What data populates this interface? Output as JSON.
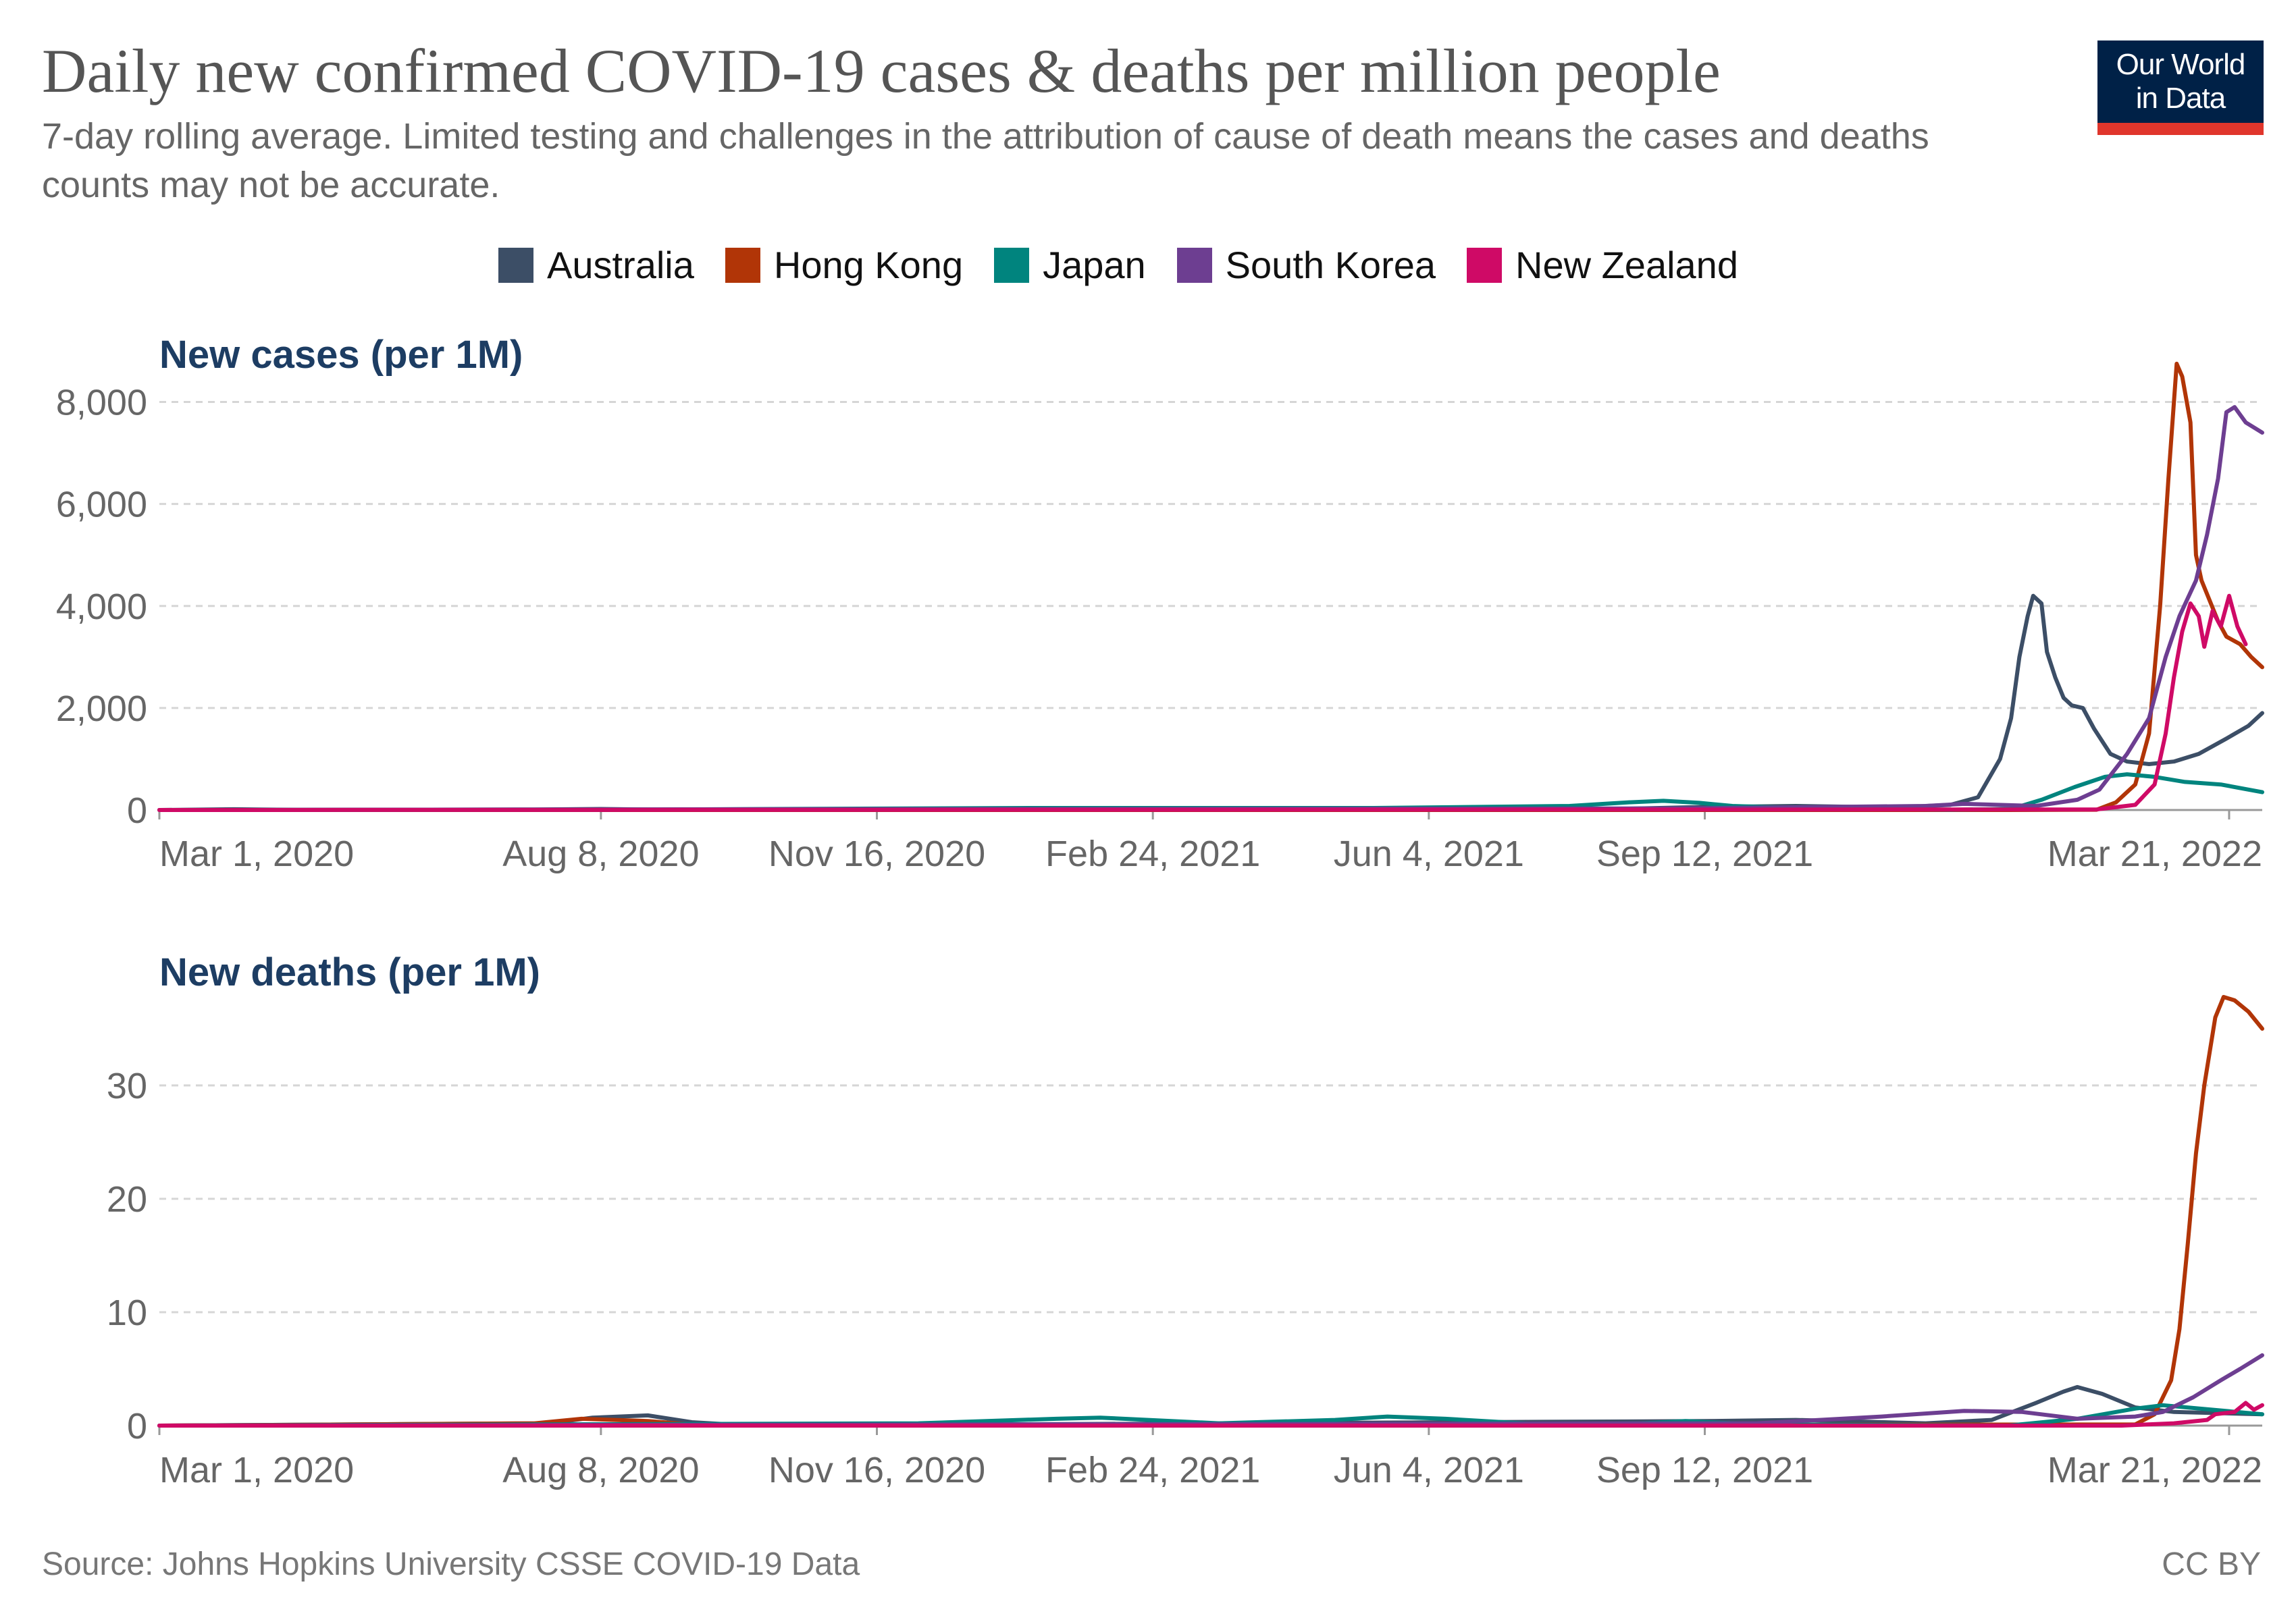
{
  "header": {
    "title": "Daily new confirmed COVID-19 cases & deaths per million people",
    "subtitle": "7-day rolling average. Limited testing and challenges in the attribution of cause of death means the cases and deaths counts may not be accurate.",
    "logo_line1": "Our World",
    "logo_line2": "in Data"
  },
  "footer": {
    "source": "Source: Johns Hopkins University CSSE COVID-19 Data",
    "license": "CC BY"
  },
  "colors": {
    "Australia": "#3c4e66",
    "Hong Kong": "#b13507",
    "Japan": "#00847e",
    "South Korea": "#6d3e91",
    "New Zealand": "#cf0a66"
  },
  "chart_data": [
    {
      "type": "line",
      "title": "New cases (per 1M)",
      "date_range": [
        "2020-03-01",
        "2022-04-02"
      ],
      "ylim": [
        0,
        9000
      ],
      "yticks": [
        0,
        2000,
        4000,
        6000,
        8000
      ],
      "ytick_labels": [
        "0",
        "2,000",
        "4,000",
        "6,000",
        "8,000"
      ],
      "xtick_labels": [
        "Mar 1, 2020",
        "Aug 8, 2020",
        "Nov 16, 2020",
        "Feb 24, 2021",
        "Jun 4, 2021",
        "Sep 12, 2021",
        "Mar 21, 2022"
      ],
      "xtick_dates": [
        "2020-03-01",
        "2020-08-08",
        "2020-11-16",
        "2021-02-24",
        "2021-06-04",
        "2021-09-12",
        "2022-03-21"
      ],
      "legend": [
        "Australia",
        "Hong Kong",
        "Japan",
        "South Korea",
        "New Zealand"
      ],
      "legend_position": "top",
      "grid": true,
      "series": [
        {
          "name": "Australia",
          "points": [
            [
              "2020-03-01",
              0
            ],
            [
              "2020-03-28",
              15
            ],
            [
              "2020-04-20",
              2
            ],
            [
              "2020-07-15",
              10
            ],
            [
              "2020-08-08",
              20
            ],
            [
              "2020-09-01",
              5
            ],
            [
              "2020-11-16",
              1
            ],
            [
              "2021-06-04",
              2
            ],
            [
              "2021-08-01",
              8
            ],
            [
              "2021-09-12",
              60
            ],
            [
              "2021-10-15",
              80
            ],
            [
              "2021-11-20",
              50
            ],
            [
              "2021-12-10",
              100
            ],
            [
              "2021-12-20",
              250
            ],
            [
              "2021-12-28",
              1000
            ],
            [
              "2022-01-01",
              1800
            ],
            [
              "2022-01-04",
              3000
            ],
            [
              "2022-01-07",
              3800
            ],
            [
              "2022-01-09",
              4200
            ],
            [
              "2022-01-12",
              4050
            ],
            [
              "2022-01-14",
              3100
            ],
            [
              "2022-01-17",
              2600
            ],
            [
              "2022-01-20",
              2200
            ],
            [
              "2022-01-23",
              2050
            ],
            [
              "2022-01-27",
              2000
            ],
            [
              "2022-01-31",
              1600
            ],
            [
              "2022-02-06",
              1100
            ],
            [
              "2022-02-12",
              950
            ],
            [
              "2022-02-20",
              900
            ],
            [
              "2022-03-01",
              950
            ],
            [
              "2022-03-10",
              1100
            ],
            [
              "2022-03-20",
              1400
            ],
            [
              "2022-03-28",
              1650
            ],
            [
              "2022-04-02",
              1900
            ]
          ]
        },
        {
          "name": "Hong Kong",
          "points": [
            [
              "2020-03-01",
              0
            ],
            [
              "2021-12-31",
              0
            ],
            [
              "2022-02-01",
              5
            ],
            [
              "2022-02-08",
              150
            ],
            [
              "2022-02-15",
              500
            ],
            [
              "2022-02-20",
              1500
            ],
            [
              "2022-02-24",
              4000
            ],
            [
              "2022-02-27",
              6500
            ],
            [
              "2022-03-02",
              8750
            ],
            [
              "2022-03-04",
              8500
            ],
            [
              "2022-03-07",
              7600
            ],
            [
              "2022-03-09",
              5000
            ],
            [
              "2022-03-11",
              4500
            ],
            [
              "2022-03-14",
              4100
            ],
            [
              "2022-03-17",
              3700
            ],
            [
              "2022-03-20",
              3400
            ],
            [
              "2022-03-25",
              3250
            ],
            [
              "2022-03-29",
              3000
            ],
            [
              "2022-04-02",
              2800
            ]
          ]
        },
        {
          "name": "Japan",
          "points": [
            [
              "2020-03-01",
              0
            ],
            [
              "2020-08-08",
              5
            ],
            [
              "2021-01-10",
              40
            ],
            [
              "2021-05-15",
              40
            ],
            [
              "2021-07-25",
              80
            ],
            [
              "2021-08-15",
              150
            ],
            [
              "2021-08-28",
              180
            ],
            [
              "2021-09-10",
              140
            ],
            [
              "2021-09-22",
              80
            ],
            [
              "2021-10-15",
              40
            ],
            [
              "2021-12-10",
              5
            ],
            [
              "2022-01-01",
              20
            ],
            [
              "2022-01-12",
              200
            ],
            [
              "2022-01-24",
              450
            ],
            [
              "2022-02-04",
              650
            ],
            [
              "2022-02-12",
              700
            ],
            [
              "2022-02-22",
              650
            ],
            [
              "2022-03-05",
              550
            ],
            [
              "2022-03-18",
              500
            ],
            [
              "2022-04-02",
              350
            ]
          ]
        },
        {
          "name": "South Korea",
          "points": [
            [
              "2020-03-01",
              0
            ],
            [
              "2020-12-25",
              20
            ],
            [
              "2021-09-01",
              30
            ],
            [
              "2021-12-01",
              80
            ],
            [
              "2021-12-15",
              120
            ],
            [
              "2022-01-10",
              80
            ],
            [
              "2022-01-25",
              200
            ],
            [
              "2022-02-02",
              400
            ],
            [
              "2022-02-12",
              1100
            ],
            [
              "2022-02-20",
              1800
            ],
            [
              "2022-02-26",
              3000
            ],
            [
              "2022-03-03",
              3800
            ],
            [
              "2022-03-09",
              4500
            ],
            [
              "2022-03-13",
              5400
            ],
            [
              "2022-03-17",
              6500
            ],
            [
              "2022-03-20",
              7800
            ],
            [
              "2022-03-23",
              7900
            ],
            [
              "2022-03-27",
              7600
            ],
            [
              "2022-04-02",
              7400
            ]
          ]
        },
        {
          "name": "New Zealand",
          "points": [
            [
              "2020-03-01",
              0
            ],
            [
              "2022-02-01",
              10
            ],
            [
              "2022-02-15",
              100
            ],
            [
              "2022-02-22",
              500
            ],
            [
              "2022-02-26",
              1500
            ],
            [
              "2022-03-01",
              2600
            ],
            [
              "2022-03-04",
              3500
            ],
            [
              "2022-03-07",
              4050
            ],
            [
              "2022-03-10",
              3800
            ],
            [
              "2022-03-12",
              3200
            ],
            [
              "2022-03-15",
              3900
            ],
            [
              "2022-03-18",
              3600
            ],
            [
              "2022-03-21",
              4200
            ],
            [
              "2022-03-24",
              3600
            ],
            [
              "2022-03-27",
              3250
            ]
          ]
        }
      ]
    },
    {
      "type": "line",
      "title": "New deaths (per 1M)",
      "date_range": [
        "2020-03-01",
        "2022-04-02"
      ],
      "ylim": [
        0,
        40
      ],
      "yticks": [
        0,
        10,
        20,
        30
      ],
      "ytick_labels": [
        "0",
        "10",
        "20",
        "30"
      ],
      "xtick_labels": [
        "Mar 1, 2020",
        "Aug 8, 2020",
        "Nov 16, 2020",
        "Feb 24, 2021",
        "Jun 4, 2021",
        "Sep 12, 2021",
        "Mar 21, 2022"
      ],
      "xtick_dates": [
        "2020-03-01",
        "2020-08-08",
        "2020-11-16",
        "2021-02-24",
        "2021-06-04",
        "2021-09-12",
        "2022-03-21"
      ],
      "grid": true,
      "series": [
        {
          "name": "Australia",
          "points": [
            [
              "2020-03-01",
              0
            ],
            [
              "2020-07-20",
              0.2
            ],
            [
              "2020-08-05",
              0.7
            ],
            [
              "2020-08-25",
              0.9
            ],
            [
              "2020-09-10",
              0.3
            ],
            [
              "2020-10-01",
              0
            ],
            [
              "2021-09-12",
              0.4
            ],
            [
              "2021-10-15",
              0.5
            ],
            [
              "2021-12-01",
              0.2
            ],
            [
              "2021-12-25",
              0.5
            ],
            [
              "2022-01-10",
              2.0
            ],
            [
              "2022-01-20",
              3.0
            ],
            [
              "2022-01-25",
              3.4
            ],
            [
              "2022-02-03",
              2.8
            ],
            [
              "2022-02-15",
              1.6
            ],
            [
              "2022-03-01",
              1.2
            ],
            [
              "2022-04-02",
              1.0
            ]
          ]
        },
        {
          "name": "Hong Kong",
          "points": [
            [
              "2020-03-01",
              0
            ],
            [
              "2020-07-15",
              0.2
            ],
            [
              "2020-08-01",
              0.6
            ],
            [
              "2020-08-25",
              0.4
            ],
            [
              "2020-09-15",
              0
            ],
            [
              "2022-02-15",
              0.1
            ],
            [
              "2022-02-22",
              1.0
            ],
            [
              "2022-02-28",
              4.0
            ],
            [
              "2022-03-03",
              8.5
            ],
            [
              "2022-03-06",
              16
            ],
            [
              "2022-03-09",
              24
            ],
            [
              "2022-03-12",
              30
            ],
            [
              "2022-03-16",
              36
            ],
            [
              "2022-03-19",
              37.8
            ],
            [
              "2022-03-23",
              37.5
            ],
            [
              "2022-03-28",
              36.5
            ],
            [
              "2022-04-02",
              35
            ]
          ]
        },
        {
          "name": "Japan",
          "points": [
            [
              "2020-03-01",
              0
            ],
            [
              "2020-12-01",
              0.2
            ],
            [
              "2021-01-20",
              0.6
            ],
            [
              "2021-02-05",
              0.7
            ],
            [
              "2021-03-20",
              0.2
            ],
            [
              "2021-05-01",
              0.5
            ],
            [
              "2021-05-20",
              0.8
            ],
            [
              "2021-06-10",
              0.6
            ],
            [
              "2021-07-15",
              0.1
            ],
            [
              "2021-08-20",
              0.2
            ],
            [
              "2021-09-05",
              0.4
            ],
            [
              "2021-10-01",
              0.1
            ],
            [
              "2021-12-31",
              0
            ],
            [
              "2022-01-25",
              0.6
            ],
            [
              "2022-02-15",
              1.5
            ],
            [
              "2022-02-25",
              1.8
            ],
            [
              "2022-03-15",
              1.4
            ],
            [
              "2022-04-02",
              1.0
            ]
          ]
        },
        {
          "name": "South Korea",
          "points": [
            [
              "2020-03-01",
              0
            ],
            [
              "2021-10-01",
              0.2
            ],
            [
              "2021-11-15",
              0.8
            ],
            [
              "2021-12-15",
              1.3
            ],
            [
              "2022-01-05",
              1.2
            ],
            [
              "2022-01-25",
              0.6
            ],
            [
              "2022-02-15",
              0.8
            ],
            [
              "2022-02-25",
              1.2
            ],
            [
              "2022-03-08",
              2.5
            ],
            [
              "2022-03-18",
              4.0
            ],
            [
              "2022-03-25",
              5.0
            ],
            [
              "2022-04-02",
              6.2
            ]
          ]
        },
        {
          "name": "New Zealand",
          "points": [
            [
              "2020-03-01",
              0
            ],
            [
              "2022-02-10",
              0
            ],
            [
              "2022-03-01",
              0.2
            ],
            [
              "2022-03-13",
              0.5
            ],
            [
              "2022-03-16",
              1.0
            ],
            [
              "2022-03-23",
              1.2
            ],
            [
              "2022-03-27",
              2.0
            ],
            [
              "2022-03-30",
              1.4
            ],
            [
              "2022-04-02",
              1.8
            ]
          ]
        }
      ]
    }
  ]
}
